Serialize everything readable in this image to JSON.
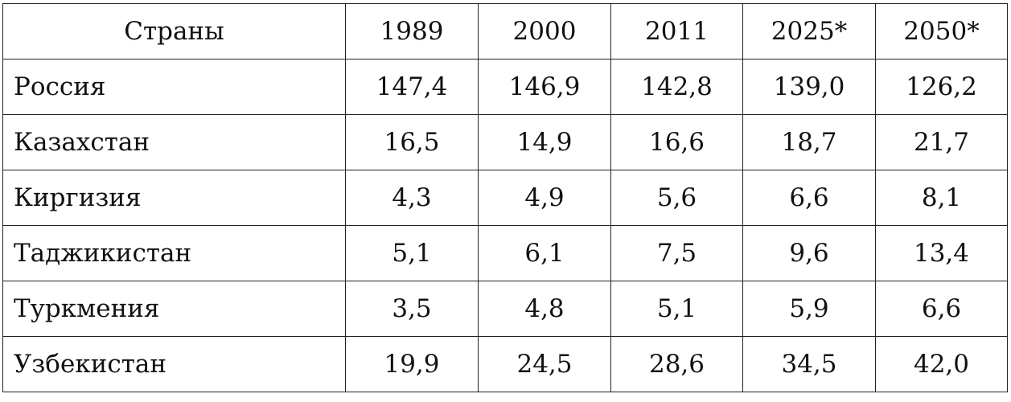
{
  "table": {
    "header": [
      "Страны",
      "1989",
      "2000",
      "2011",
      "2025*",
      "2050*"
    ],
    "rows": [
      {
        "country": "Россия",
        "values": [
          "147,4",
          "146,9",
          "142,8",
          "139,0",
          "126,2"
        ]
      },
      {
        "country": "Казахстан",
        "values": [
          "16,5",
          "14,9",
          "16,6",
          "18,7",
          "21,7"
        ]
      },
      {
        "country": "Киргизия",
        "values": [
          "4,3",
          "4,9",
          "5,6",
          "6,6",
          "8,1"
        ]
      },
      {
        "country": "Таджикистан",
        "values": [
          "5,1",
          "6,1",
          "7,5",
          "9,6",
          "13,4"
        ]
      },
      {
        "country": "Туркмения",
        "values": [
          "3,5",
          "4,8",
          "5,1",
          "5,9",
          "6,6"
        ]
      },
      {
        "country": "Узбекистан",
        "values": [
          "19,9",
          "24,5",
          "28,6",
          "34,5",
          "42,0"
        ]
      }
    ]
  }
}
